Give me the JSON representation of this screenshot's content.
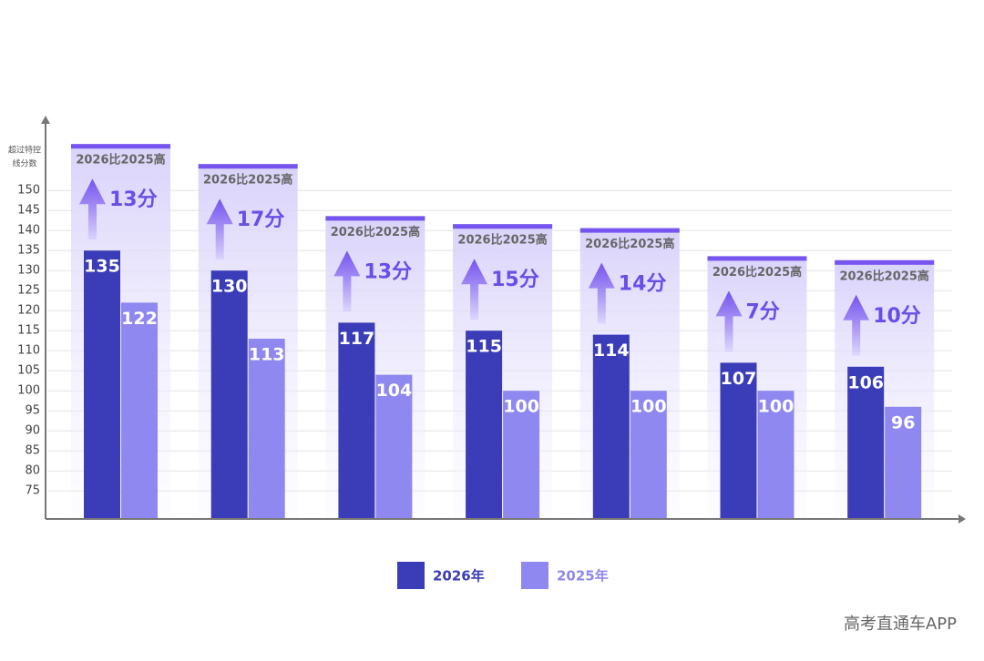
{
  "chart_data": {
    "type": "bar",
    "y_axis_title": [
      "超过特控",
      "线分数"
    ],
    "categories": [
      null,
      null,
      null,
      null,
      null,
      null,
      null
    ],
    "series": [
      {
        "name": "2026年",
        "color": "#3a3cb8",
        "values": [
          135,
          130,
          117,
          115,
          114,
          107,
          106
        ]
      },
      {
        "name": "2025年",
        "color": "#8f88f0",
        "values": [
          122,
          113,
          104,
          100,
          100,
          100,
          96
        ]
      }
    ],
    "annotation_text": "2026比2025高",
    "gap_labels": [
      "13分",
      "17分",
      "13分",
      "15分",
      "14分",
      "7分",
      "10分"
    ],
    "ylim": [
      68,
      168
    ],
    "yticks": [
      75,
      80,
      85,
      90,
      95,
      100,
      105,
      110,
      115,
      120,
      125,
      130,
      135,
      140,
      145,
      150
    ],
    "grid": true,
    "watermark": "高考直通车APP"
  }
}
